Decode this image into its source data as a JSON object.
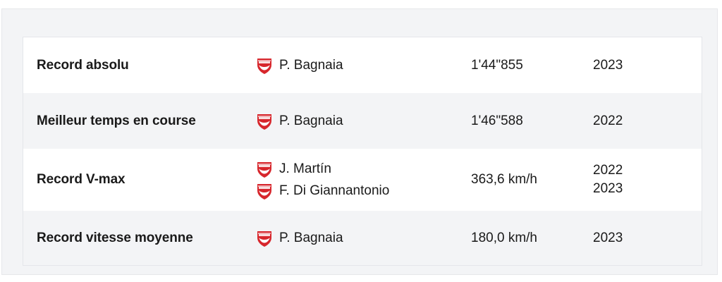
{
  "records": {
    "brand_color": "#d7262c",
    "rows": [
      {
        "label": "Record absolu",
        "riders": [
          {
            "name": "P. Bagnaia",
            "team_icon": "ducati-logo-icon"
          }
        ],
        "value": "1'44\"855",
        "years": [
          "2023"
        ]
      },
      {
        "label": "Meilleur temps en course",
        "riders": [
          {
            "name": "P. Bagnaia",
            "team_icon": "ducati-logo-icon"
          }
        ],
        "value": "1'46\"588",
        "years": [
          "2022"
        ]
      },
      {
        "label": "Record V-max",
        "riders": [
          {
            "name": "J. Martín",
            "team_icon": "ducati-logo-icon"
          },
          {
            "name": "F. Di Giannantonio",
            "team_icon": "ducati-logo-icon"
          }
        ],
        "value": "363,6 km/h",
        "years": [
          "2022",
          "2023"
        ]
      },
      {
        "label": "Record vitesse moyenne",
        "riders": [
          {
            "name": "P. Bagnaia",
            "team_icon": "ducati-logo-icon"
          }
        ],
        "value": "180,0 km/h",
        "years": [
          "2023"
        ]
      }
    ]
  }
}
